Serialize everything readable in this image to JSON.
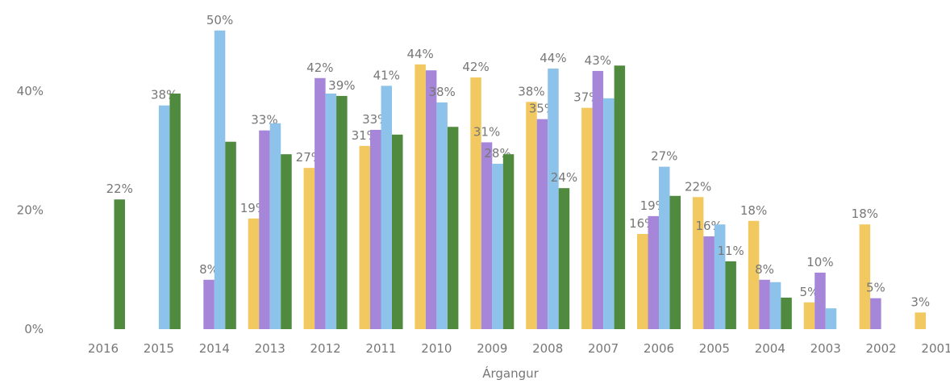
{
  "chart_data": {
    "type": "bar",
    "x_label": "Árgangur",
    "categories": [
      "2016",
      "2015",
      "2014",
      "2013",
      "2012",
      "2011",
      "2010",
      "2009",
      "2008",
      "2007",
      "2006",
      "2005",
      "2004",
      "2003",
      "2002",
      "2001"
    ],
    "ylim": [
      0,
      55
    ],
    "yticks": [
      {
        "value": 0,
        "label": "0%"
      },
      {
        "value": 20,
        "label": "20%"
      },
      {
        "value": 40,
        "label": "40%"
      }
    ],
    "series": [
      {
        "color": "#f2c960",
        "values": [
          null,
          null,
          null,
          18.6,
          27.1,
          30.8,
          44.5,
          42.3,
          38.2,
          37.2,
          16.0,
          22.2,
          18.2,
          4.5,
          17.6,
          2.8
        ],
        "value_labels": [
          null,
          null,
          null,
          "19%",
          "27%",
          "31%",
          "44%",
          "42%",
          "38%",
          "37%",
          "16%",
          "22%",
          "18%",
          "5%",
          "18%",
          "3%"
        ]
      },
      {
        "color": "#a586d9",
        "values": [
          null,
          null,
          8.3,
          33.4,
          42.2,
          33.5,
          43.5,
          31.4,
          35.3,
          43.4,
          19.0,
          15.6,
          8.3,
          9.5,
          5.2,
          null
        ],
        "value_labels": [
          null,
          null,
          "8%",
          "33%",
          "42%",
          "33%",
          null,
          "31%",
          "35%",
          "43%",
          "19%",
          "16%",
          "8%",
          "10%",
          "5%",
          null
        ]
      },
      {
        "color": "#8dc3ea",
        "values": [
          null,
          37.6,
          50.2,
          34.6,
          39.6,
          40.9,
          38.1,
          27.8,
          43.8,
          38.8,
          27.3,
          17.6,
          7.9,
          3.5,
          null,
          null
        ],
        "value_labels": [
          null,
          "38%",
          "50%",
          null,
          null,
          "41%",
          "38%",
          "28%",
          "44%",
          null,
          "27%",
          null,
          null,
          null,
          null,
          null
        ]
      },
      {
        "color": "#4f8a3f",
        "values": [
          21.8,
          39.6,
          31.5,
          29.4,
          39.2,
          32.7,
          34.0,
          29.4,
          23.7,
          44.3,
          22.4,
          11.4,
          5.3,
          null,
          null,
          null
        ],
        "value_labels": [
          "22%",
          null,
          null,
          null,
          "39%",
          null,
          null,
          null,
          "24%",
          null,
          null,
          "11%",
          null,
          null,
          null,
          null
        ]
      }
    ]
  }
}
